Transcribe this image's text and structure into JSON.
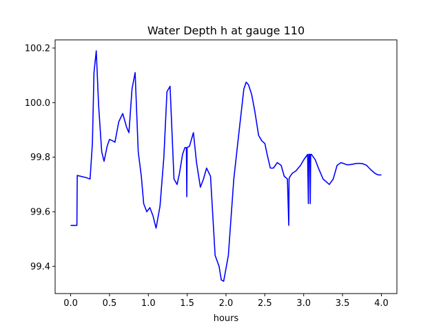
{
  "chart_data": {
    "type": "line",
    "title": "Water Depth h at gauge 110",
    "xlabel": "hours",
    "ylabel": "",
    "xlim": [
      -0.2,
      4.2
    ],
    "ylim": [
      99.3,
      100.23
    ],
    "grid": false,
    "x_ticks": [
      0.0,
      0.5,
      1.0,
      1.5,
      2.0,
      2.5,
      3.0,
      3.5,
      4.0
    ],
    "x_tick_labels": [
      "0.0",
      "0.5",
      "1.0",
      "1.5",
      "2.0",
      "2.5",
      "3.0",
      "3.5",
      "4.0"
    ],
    "y_ticks": [
      99.4,
      99.6,
      99.8,
      100.0,
      100.2
    ],
    "y_tick_labels": [
      "99.4",
      "99.6",
      "99.8",
      "100.0",
      "100.2"
    ],
    "series": [
      {
        "color": "#0000ff",
        "x": [
          0.0,
          0.08,
          0.085,
          0.2,
          0.25,
          0.28,
          0.3,
          0.33,
          0.36,
          0.4,
          0.43,
          0.47,
          0.5,
          0.54,
          0.57,
          0.62,
          0.67,
          0.72,
          0.75,
          0.79,
          0.83,
          0.87,
          0.91,
          0.94,
          0.98,
          1.02,
          1.06,
          1.1,
          1.15,
          1.2,
          1.24,
          1.28,
          1.33,
          1.37,
          1.4,
          1.44,
          1.47,
          1.49,
          1.495,
          1.5,
          1.53,
          1.58,
          1.62,
          1.67,
          1.71,
          1.75,
          1.8,
          1.86,
          1.91,
          1.94,
          1.97,
          2.03,
          2.1,
          2.17,
          2.23,
          2.26,
          2.29,
          2.33,
          2.37,
          2.42,
          2.46,
          2.5,
          2.53,
          2.57,
          2.61,
          2.66,
          2.71,
          2.75,
          2.79,
          2.808,
          2.812,
          2.815,
          2.85,
          2.9,
          2.96,
          3.0,
          3.05,
          3.06,
          3.066,
          3.08,
          3.085,
          3.09,
          3.1,
          3.15,
          3.19,
          3.25,
          3.33,
          3.38,
          3.43,
          3.48,
          3.53,
          3.56,
          3.61,
          3.68,
          3.72,
          3.76,
          3.81,
          3.86,
          3.92,
          3.96,
          4.0
        ],
        "y": [
          99.55,
          99.55,
          99.733,
          99.725,
          99.72,
          99.85,
          100.11,
          100.19,
          99.99,
          99.82,
          99.785,
          99.84,
          99.865,
          99.86,
          99.855,
          99.93,
          99.96,
          99.91,
          99.89,
          100.05,
          100.11,
          99.82,
          99.73,
          99.63,
          99.6,
          99.615,
          99.585,
          99.54,
          99.62,
          99.8,
          100.04,
          100.06,
          99.72,
          99.7,
          99.74,
          99.81,
          99.835,
          99.835,
          99.655,
          99.835,
          99.84,
          99.89,
          99.78,
          99.69,
          99.72,
          99.76,
          99.73,
          99.44,
          99.4,
          99.35,
          99.345,
          99.44,
          99.72,
          99.9,
          100.05,
          100.075,
          100.065,
          100.03,
          99.97,
          99.88,
          99.86,
          99.85,
          99.81,
          99.76,
          99.76,
          99.78,
          99.77,
          99.73,
          99.72,
          99.55,
          99.72,
          99.725,
          99.74,
          99.75,
          99.77,
          99.79,
          99.81,
          99.63,
          99.81,
          99.81,
          99.63,
          99.81,
          99.81,
          99.79,
          99.76,
          99.72,
          99.7,
          99.72,
          99.77,
          99.78,
          99.775,
          99.772,
          99.773,
          99.777,
          99.777,
          99.776,
          99.77,
          99.755,
          99.74,
          99.735,
          99.735
        ]
      }
    ]
  }
}
